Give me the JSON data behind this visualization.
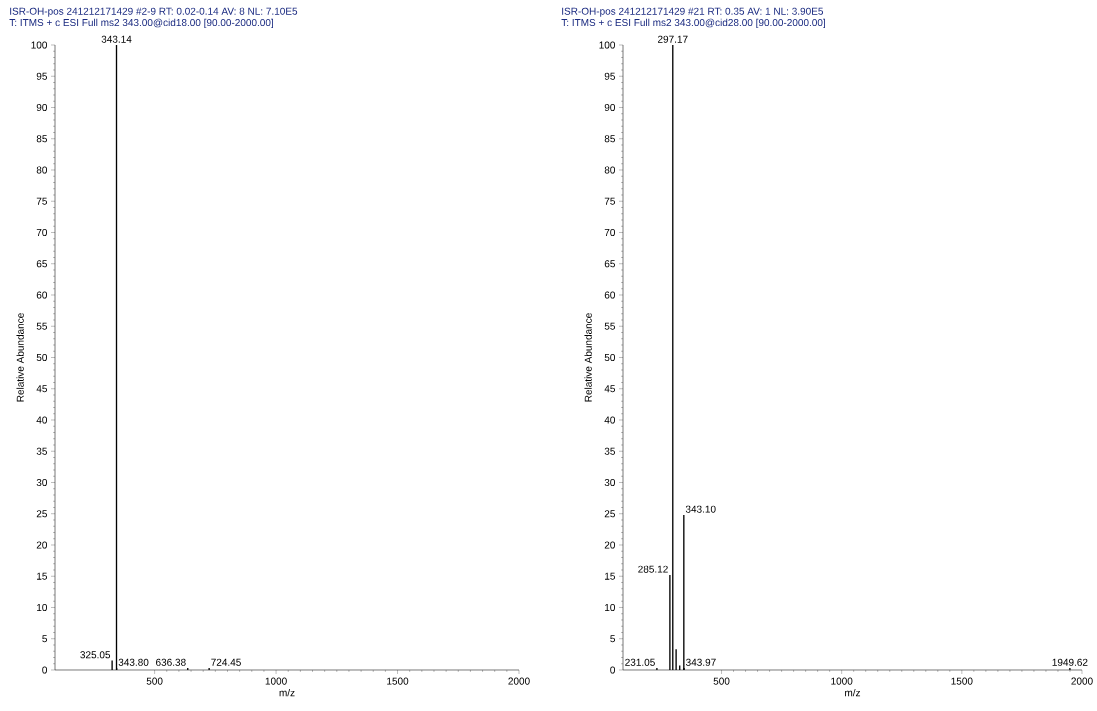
{
  "chart_data": [
    {
      "type": "bar",
      "title": "ISR-OH-pos 241212171429 #2-9 RT: 0.02-0.14 AV: 8 NL: 7.10E5",
      "subtitle": "T: ITMS + c ESI Full ms2 343.00@cid18.00 [90.00-2000.00]",
      "xlabel": "m/z",
      "ylabel": "Relative Abundance",
      "x": [
        325.05,
        343.14,
        343.8,
        636.38,
        724.45
      ],
      "series": [
        {
          "color": "#000000",
          "values": [
            1.5,
            100,
            0.3,
            0.3,
            0.3
          ]
        }
      ],
      "xlim": [
        90,
        2000
      ],
      "xticks": [
        500,
        1000,
        1500,
        2000
      ],
      "ylim": [
        0,
        100
      ],
      "yticks": [
        0,
        5,
        10,
        15,
        20,
        25,
        30,
        35,
        40,
        45,
        50,
        55,
        60,
        65,
        70,
        75,
        80,
        85,
        90,
        95,
        100
      ],
      "annotations": [
        {
          "text": "325.05",
          "x": 325.05,
          "y": 1.5
        },
        {
          "text": "343.14",
          "x": 343.14,
          "y": 100
        },
        {
          "text": "343.80",
          "x": 343.8,
          "y": 0.3
        },
        {
          "text": "636.38",
          "x": 636.38,
          "y": 0.3
        },
        {
          "text": "724.45",
          "x": 724.45,
          "y": 0.3
        }
      ]
    },
    {
      "type": "bar",
      "title": "ISR-OH-pos 241212171429 #21 RT: 0.35 AV: 1 NL: 3.90E5",
      "subtitle": "T: ITMS + c ESI Full ms2 343.00@cid28.00 [90.00-2000.00]",
      "xlabel": "m/z",
      "ylabel": "Relative Abundance",
      "x": [
        231.05,
        285.12,
        297.17,
        311,
        326,
        343.1,
        343.97,
        1949.62
      ],
      "series": [
        {
          "color": "#000000",
          "values": [
            0.3,
            15.2,
            100,
            3.3,
            0.7,
            24.8,
            0.3,
            0.3
          ]
        }
      ],
      "xlim": [
        90,
        2000
      ],
      "xticks": [
        500,
        1000,
        1500,
        2000
      ],
      "ylim": [
        0,
        100
      ],
      "yticks": [
        0,
        5,
        10,
        15,
        20,
        25,
        30,
        35,
        40,
        45,
        50,
        55,
        60,
        65,
        70,
        75,
        80,
        85,
        90,
        95,
        100
      ],
      "annotations": [
        {
          "text": "231.05",
          "x": 231.05,
          "y": 0.3
        },
        {
          "text": "285.12",
          "x": 285.12,
          "y": 15.2
        },
        {
          "text": "297.17",
          "x": 297.17,
          "y": 100
        },
        {
          "text": "343.10",
          "x": 343.1,
          "y": 24.8
        },
        {
          "text": "343.97",
          "x": 343.97,
          "y": 0.3
        },
        {
          "text": "1949.62",
          "x": 1949.62,
          "y": 0.3
        }
      ]
    }
  ]
}
